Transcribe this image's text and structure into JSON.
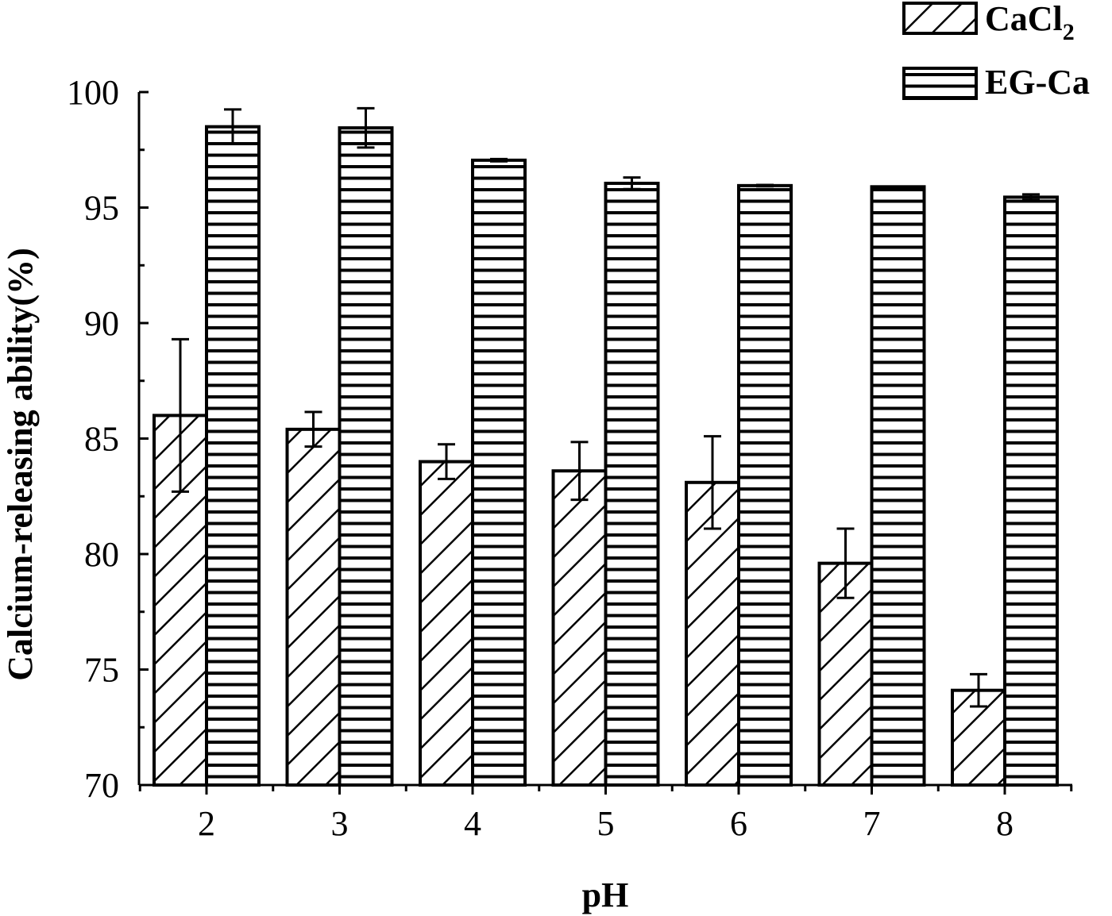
{
  "chart_data": {
    "type": "bar",
    "xlabel": "pH",
    "ylabel": "Calcium-releasing ability(%)",
    "categories": [
      "2",
      "3",
      "4",
      "5",
      "6",
      "7",
      "8"
    ],
    "ylim": [
      70,
      100
    ],
    "yticks": [
      "70",
      "75",
      "80",
      "85",
      "90",
      "95",
      "100"
    ],
    "series": [
      {
        "name_main": "CaCl",
        "name_sub": "2",
        "pattern": "diagonal-hatch",
        "values": [
          86.0,
          85.4,
          84.0,
          83.6,
          83.1,
          79.6,
          74.1
        ],
        "errors": [
          3.3,
          0.75,
          0.75,
          1.25,
          2.0,
          1.5,
          0.7
        ]
      },
      {
        "name": "EG-Ca",
        "pattern": "horizontal-hatch",
        "values": [
          98.5,
          98.45,
          97.05,
          96.05,
          95.95,
          95.9,
          95.45
        ],
        "errors": [
          0.75,
          0.85,
          0.05,
          0.25,
          0.03,
          0.0,
          0.12
        ]
      }
    ],
    "legend_position": "top-right",
    "grid": false,
    "colors": {
      "ink": "#000000",
      "fill": "#ffffff"
    }
  }
}
